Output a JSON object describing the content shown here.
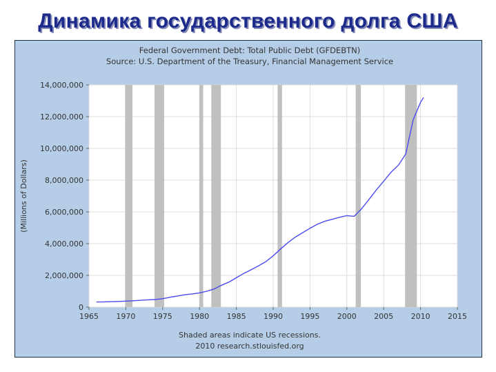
{
  "slide": {
    "title": "Динамика государственного долга  США"
  },
  "colors": {
    "panel_bg": "#b5cde6",
    "plot_bg": "#ffffff",
    "line": "#4a4af0",
    "recession": "#c0c0c0",
    "grid": "#dcdcdc",
    "title_text": "#1c2a8c"
  },
  "chart_data": {
    "type": "line",
    "title": "Federal Government Debt: Total Public Debt (GFDEBTN)",
    "subtitle": "Source: U.S. Department of the Treasury, Financial Management Service",
    "ylabel": "(Millions of Dollars)",
    "xlabel": "",
    "xlim": [
      1965,
      2015
    ],
    "ylim": [
      0,
      14000000
    ],
    "x_ticks": [
      1965,
      1970,
      1975,
      1980,
      1985,
      1990,
      1995,
      2000,
      2005,
      2010,
      2015
    ],
    "x_tick_labels": [
      "1965",
      "1970",
      "1975",
      "1980",
      "1985",
      "1990",
      "1995",
      "2000",
      "2005",
      "2010",
      "2015"
    ],
    "y_ticks": [
      0,
      2000000,
      4000000,
      6000000,
      8000000,
      10000000,
      12000000,
      14000000
    ],
    "y_tick_labels": [
      "0",
      "2,000,000",
      "4,000,000",
      "6,000,000",
      "8,000,000",
      "10,000,000",
      "12,000,000",
      "14,000,000"
    ],
    "grid": true,
    "legend": "none",
    "recessions": [
      [
        1969.9,
        1970.9
      ],
      [
        1973.9,
        1975.2
      ],
      [
        1980.0,
        1980.5
      ],
      [
        1981.6,
        1982.9
      ],
      [
        1990.6,
        1991.2
      ],
      [
        2001.2,
        2001.9
      ],
      [
        2007.9,
        2009.5
      ]
    ],
    "series": [
      {
        "x": [
          1966,
          1967,
          1968,
          1969,
          1970,
          1971,
          1972,
          1973,
          1974,
          1975,
          1976,
          1977,
          1978,
          1979,
          1980,
          1981,
          1982,
          1983,
          1984,
          1985,
          1986,
          1987,
          1988,
          1989,
          1990,
          1991,
          1992,
          1993,
          1994,
          1995,
          1996,
          1997,
          1998,
          1999,
          2000,
          2001,
          2002,
          2003,
          2004,
          2005,
          2006,
          2007,
          2008,
          2009,
          2010,
          2010.4
        ],
        "values": [
          320000,
          330000,
          345000,
          355000,
          380000,
          400000,
          430000,
          460000,
          480000,
          530000,
          620000,
          700000,
          780000,
          830000,
          900000,
          1000000,
          1150000,
          1380000,
          1580000,
          1850000,
          2120000,
          2350000,
          2600000,
          2860000,
          3230000,
          3660000,
          4060000,
          4410000,
          4690000,
          4970000,
          5220000,
          5410000,
          5530000,
          5660000,
          5760000,
          5720000,
          6200000,
          6780000,
          7380000,
          7930000,
          8500000,
          8950000,
          9650000,
          11800000,
          12900000,
          13200000
        ]
      }
    ],
    "footer_lines": [
      "Shaded areas indicate US recessions.",
      "2010 research.stlouisfed.org"
    ]
  }
}
